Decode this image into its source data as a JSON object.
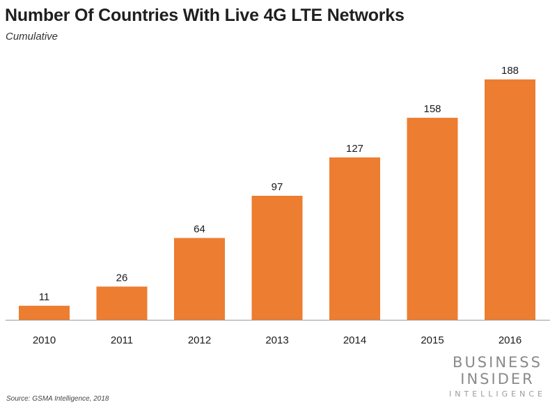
{
  "chart_data": {
    "type": "bar",
    "title": "Number Of Countries With Live 4G LTE Networks",
    "subtitle": "Cumulative",
    "categories": [
      "2010",
      "2011",
      "2012",
      "2013",
      "2014",
      "2015",
      "2016"
    ],
    "values": [
      11,
      26,
      64,
      97,
      127,
      158,
      188
    ],
    "xlabel": "",
    "ylabel": "",
    "ylim": [
      0,
      188
    ],
    "bar_color": "#ED7D31",
    "grid": false
  },
  "source": "Source: GSMA Intelligence, 2018",
  "brand": {
    "line1": "BUSINESS",
    "line2": "INSIDER",
    "line3": "INTELLIGENCE"
  }
}
